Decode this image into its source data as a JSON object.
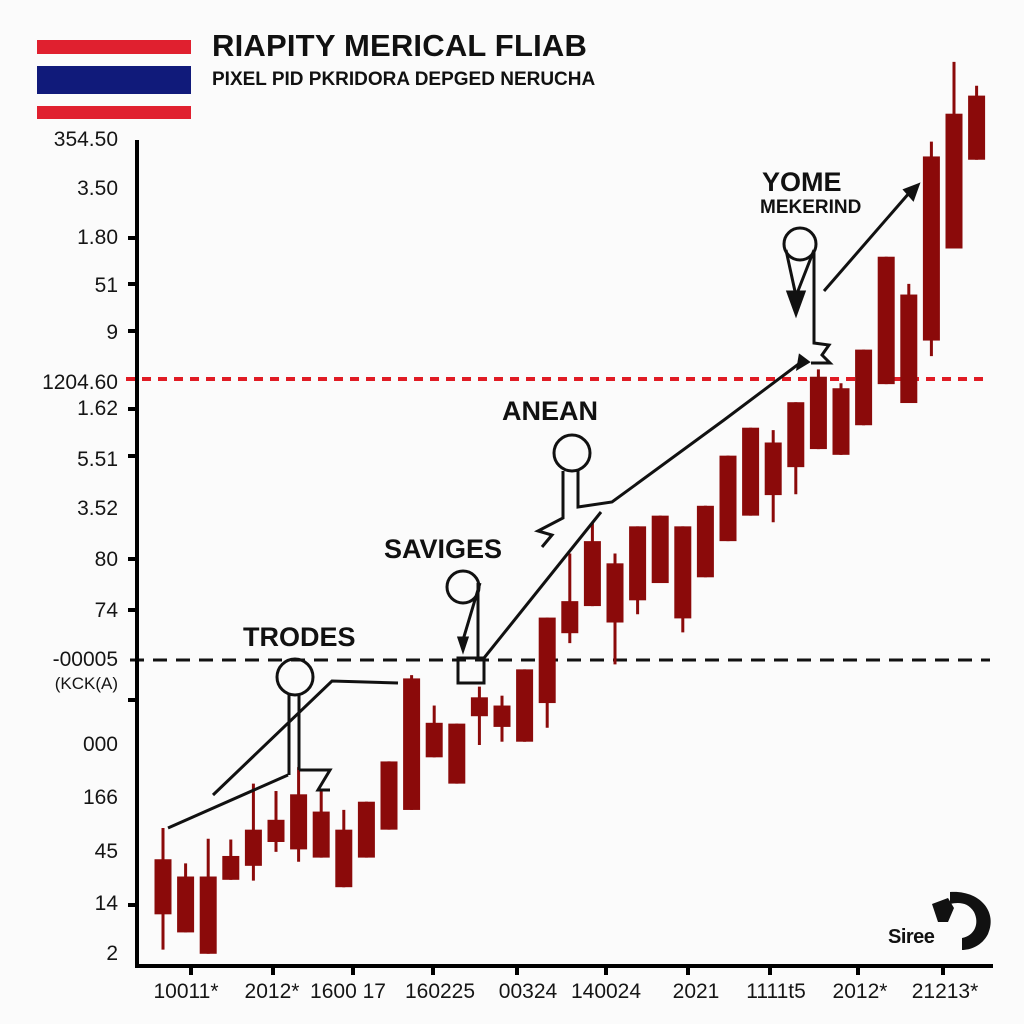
{
  "header": {
    "title": "RIAPITY MERICAL FLIAB",
    "subtitle": "PIXEL PID PKRIDORA DEPGED NERUCHA",
    "flag_colors": {
      "red": "#e0202f",
      "blue": "#101a7a",
      "white": "#ffffff"
    }
  },
  "colors": {
    "candle": "#8b0a0a",
    "axis": "#000000",
    "red_reference_line": "#e01b24",
    "black_reference_line": "#111111",
    "background": "#fbfbfb"
  },
  "annotations": [
    {
      "id": "trodes",
      "label": "TRODES"
    },
    {
      "id": "saviges",
      "label": "SAVIGES"
    },
    {
      "id": "anean",
      "label": "ANEAN"
    },
    {
      "id": "yome",
      "label": "YOME",
      "sublabel": "MEKERIND"
    }
  ],
  "logo": {
    "text": "Siree"
  },
  "chart_data": {
    "type": "candlestick",
    "title": "RIAPITY MERICAL FLIAB",
    "subtitle": "PIXEL PID PKRIDORA DEPGED NERUCHA",
    "xlabel": "",
    "ylabel": "",
    "y_tick_labels": [
      "354.50",
      "3.50",
      "1.80",
      "51",
      "9",
      "1204.60",
      "1.62",
      "5.51",
      "3.52",
      "80",
      "74",
      "-00005",
      "(KCK(A)",
      "000",
      "166",
      "45",
      "14",
      "2"
    ],
    "x_tick_labels": [
      "10011*",
      "2012*",
      "1600 17",
      "160225",
      "00324",
      "140024",
      "2021",
      "1111t5",
      "2012*",
      "21213*"
    ],
    "reference_lines": [
      {
        "label": "1204.60",
        "style": "dotted",
        "color": "#e01b24"
      },
      {
        "label": "-00005",
        "style": "dashed",
        "color": "#111111"
      }
    ],
    "grid": false,
    "legend": "none",
    "note": "Candle values given in normalized chart units (0 = bottom axis, 100 = top of plot); y-axis labels are non-monotonic so true values cannot be read.",
    "candles": [
      {
        "open": 5.8,
        "close": 12.5,
        "high": 16.3,
        "low": 1.5
      },
      {
        "open": 3.6,
        "close": 10.4,
        "high": 12.0,
        "low": 3.6
      },
      {
        "open": 1.0,
        "close": 10.4,
        "high": 15.0,
        "low": 1.0
      },
      {
        "open": 10.0,
        "close": 12.9,
        "high": 14.9,
        "low": 10.0
      },
      {
        "open": 11.7,
        "close": 16.1,
        "high": 21.7,
        "low": 9.9
      },
      {
        "open": 14.6,
        "close": 17.3,
        "high": 20.8,
        "low": 13.4
      },
      {
        "open": 13.7,
        "close": 20.4,
        "high": 23.7,
        "low": 12.2
      },
      {
        "open": 12.7,
        "close": 18.3,
        "high": 20.8,
        "low": 12.7
      },
      {
        "open": 9.1,
        "close": 16.1,
        "high": 18.5,
        "low": 9.1
      },
      {
        "open": 12.7,
        "close": 19.5,
        "high": 19.5,
        "low": 12.7
      },
      {
        "open": 16.1,
        "close": 24.4,
        "high": 24.4,
        "low": 16.1
      },
      {
        "open": 18.5,
        "close": 34.5,
        "high": 34.9,
        "low": 18.5
      },
      {
        "open": 24.9,
        "close": 29.1,
        "high": 31.2,
        "low": 24.9
      },
      {
        "open": 21.7,
        "close": 29.0,
        "high": 29.0,
        "low": 21.7
      },
      {
        "open": 29.9,
        "close": 32.2,
        "high": 33.5,
        "low": 26.4
      },
      {
        "open": 28.6,
        "close": 31.2,
        "high": 32.4,
        "low": 26.8
      },
      {
        "open": 26.8,
        "close": 35.6,
        "high": 35.6,
        "low": 26.8
      },
      {
        "open": 31.5,
        "close": 41.9,
        "high": 41.9,
        "low": 28.5
      },
      {
        "open": 40.0,
        "close": 43.9,
        "high": 49.7,
        "low": 38.8
      },
      {
        "open": 43.3,
        "close": 51.2,
        "high": 53.4,
        "low": 43.3
      },
      {
        "open": 41.3,
        "close": 48.5,
        "high": 49.7,
        "low": 36.2
      },
      {
        "open": 44.0,
        "close": 53.0,
        "high": 53.0,
        "low": 42.3
      },
      {
        "open": 46.1,
        "close": 54.3,
        "high": 54.3,
        "low": 46.1
      },
      {
        "open": 41.8,
        "close": 53.0,
        "high": 53.0,
        "low": 40.1
      },
      {
        "open": 46.8,
        "close": 55.5,
        "high": 55.5,
        "low": 46.8
      },
      {
        "open": 51.2,
        "close": 61.6,
        "high": 61.6,
        "low": 51.2
      },
      {
        "open": 54.3,
        "close": 65.0,
        "high": 65.0,
        "low": 54.3
      },
      {
        "open": 56.8,
        "close": 63.2,
        "high": 64.7,
        "low": 53.5
      },
      {
        "open": 60.2,
        "close": 68.1,
        "high": 68.1,
        "low": 56.9
      },
      {
        "open": 62.4,
        "close": 71.2,
        "high": 72.1,
        "low": 62.4
      },
      {
        "open": 61.7,
        "close": 69.8,
        "high": 70.4,
        "low": 61.7
      },
      {
        "open": 65.3,
        "close": 74.5,
        "high": 74.5,
        "low": 65.3
      },
      {
        "open": 70.3,
        "close": 85.8,
        "high": 85.8,
        "low": 70.3
      },
      {
        "open": 68.0,
        "close": 81.2,
        "high": 82.5,
        "low": 68.0
      },
      {
        "open": 75.6,
        "close": 98.0,
        "high": 99.8,
        "low": 73.7
      },
      {
        "open": 86.8,
        "close": 103.2,
        "high": 109.5,
        "low": 86.8
      },
      {
        "open": 97.6,
        "close": 105.4,
        "high": 106.6,
        "low": 97.6
      }
    ]
  }
}
